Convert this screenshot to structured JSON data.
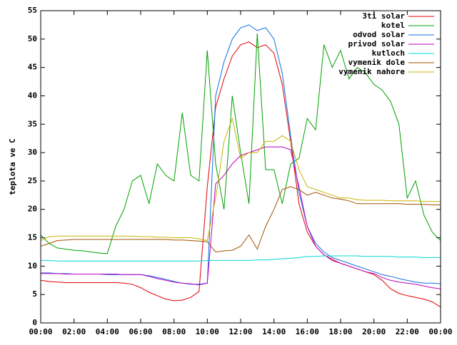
{
  "chart_data": {
    "type": "line",
    "y_label": "teplota ve C",
    "x": [
      0,
      0.5,
      1,
      1.5,
      2,
      2.5,
      3,
      3.5,
      4,
      4.5,
      5,
      5.5,
      6,
      6.5,
      7,
      7.5,
      8,
      8.5,
      9,
      9.5,
      10,
      10.5,
      11,
      11.5,
      12,
      12.5,
      13,
      13.5,
      14,
      14.5,
      15,
      15.5,
      16,
      16.5,
      17,
      17.5,
      18,
      18.5,
      19,
      19.5,
      20,
      20.5,
      21,
      21.5,
      22,
      22.5,
      23,
      23.5,
      24
    ],
    "series": [
      {
        "name": "3ti solar",
        "color": "#e00000",
        "values": [
          7.5,
          7.3,
          7.2,
          7.1,
          7.1,
          7.1,
          7.1,
          7.1,
          7.1,
          7.1,
          7.0,
          6.8,
          6.2,
          5.4,
          4.8,
          4.2,
          3.9,
          4.0,
          4.5,
          5.5,
          24,
          38,
          43,
          47,
          49,
          49.5,
          48.5,
          49,
          47.5,
          42,
          32,
          21,
          16,
          13.5,
          12,
          11.2,
          10.5,
          10,
          9.5,
          9,
          8.5,
          7.5,
          6,
          5.2,
          4.8,
          4.5,
          4.2,
          3.7,
          2.8
        ]
      },
      {
        "name": "kotel",
        "color": "#00a000",
        "values": [
          15.5,
          14,
          13.2,
          13,
          12.8,
          12.7,
          12.5,
          12.3,
          12.2,
          17,
          20,
          25,
          26,
          21,
          28,
          26,
          25,
          37,
          26,
          25,
          48,
          28,
          20,
          40,
          30,
          21,
          51,
          27,
          27,
          21,
          28,
          29,
          36,
          34,
          49,
          45,
          48,
          43,
          45,
          44,
          42,
          41,
          39,
          35,
          22,
          25,
          19,
          16,
          14.5
        ]
      },
      {
        "name": "odvod solar",
        "color": "#1070e0",
        "values": [
          8.8,
          8.8,
          8.7,
          8.7,
          8.6,
          8.6,
          8.6,
          8.6,
          8.5,
          8.5,
          8.5,
          8.5,
          8.5,
          8.3,
          8,
          7.7,
          7.3,
          7.0,
          6.8,
          6.8,
          7,
          40,
          46,
          50,
          52,
          52.5,
          51.5,
          52,
          50,
          44,
          33,
          23,
          17,
          14,
          12.5,
          11.5,
          11,
          10.5,
          10,
          9.5,
          9,
          8.5,
          8.2,
          7.8,
          7.5,
          7.2,
          7.0,
          7.0,
          6.9
        ]
      },
      {
        "name": "privod solar",
        "color": "#c000c0",
        "values": [
          8.7,
          8.7,
          8.7,
          8.6,
          8.6,
          8.6,
          8.6,
          8.6,
          8.6,
          8.6,
          8.5,
          8.5,
          8.5,
          8.2,
          7.8,
          7.5,
          7.2,
          7.0,
          6.9,
          6.7,
          7,
          24.5,
          26,
          28,
          29.5,
          30,
          30.5,
          31,
          31,
          31,
          30.5,
          24,
          17,
          13.5,
          12,
          11,
          10.5,
          10,
          9.5,
          9,
          8.7,
          8,
          7.5,
          7.2,
          7,
          6.8,
          6.5,
          6.2,
          6.0
        ]
      },
      {
        "name": "kutloch",
        "color": "#00d8d8",
        "values": [
          11,
          11,
          10.9,
          10.9,
          10.9,
          10.9,
          10.9,
          10.9,
          10.9,
          10.9,
          10.9,
          10.9,
          10.9,
          10.9,
          10.9,
          10.9,
          10.9,
          10.9,
          10.9,
          10.9,
          11,
          11,
          11,
          11,
          11,
          11,
          11.1,
          11.1,
          11.2,
          11.3,
          11.4,
          11.5,
          11.7,
          11.7,
          11.8,
          11.8,
          11.8,
          11.8,
          11.8,
          11.7,
          11.7,
          11.7,
          11.7,
          11.6,
          11.6,
          11.6,
          11.5,
          11.5,
          11.5
        ]
      },
      {
        "name": "vymenik dole",
        "color": "#a05000",
        "values": [
          13.5,
          14,
          14.5,
          14.6,
          14.7,
          14.7,
          14.7,
          14.7,
          14.7,
          14.7,
          14.7,
          14.7,
          14.7,
          14.7,
          14.7,
          14.7,
          14.6,
          14.6,
          14.5,
          14.4,
          14.3,
          12.5,
          12.7,
          12.8,
          13.5,
          15.5,
          13,
          17,
          20,
          23.5,
          24,
          23.5,
          22.5,
          23,
          22.5,
          22,
          21.8,
          21.5,
          21,
          21,
          21,
          21,
          21,
          21,
          20.9,
          20.9,
          20.9,
          20.8,
          20.8
        ]
      },
      {
        "name": "vymenik nahore",
        "color": "#c8b400",
        "values": [
          14.5,
          15.2,
          15.3,
          15.3,
          15.3,
          15.3,
          15.3,
          15.3,
          15.3,
          15.3,
          15.3,
          15.3,
          15.2,
          15.2,
          15.1,
          15.1,
          15,
          15,
          15,
          14.8,
          14.5,
          22,
          32,
          36,
          29,
          30,
          30,
          32,
          32,
          33,
          32,
          27,
          24,
          23.5,
          23,
          22.5,
          22,
          22,
          21.7,
          21.6,
          21.6,
          21.6,
          21.5,
          21.5,
          21.5,
          21.5,
          21.4,
          21.4,
          21.4
        ]
      }
    ],
    "xlim": [
      0,
      24
    ],
    "xticks": [
      {
        "value": 0,
        "label": "00:00"
      },
      {
        "value": 2,
        "label": "02:00"
      },
      {
        "value": 4,
        "label": "04:00"
      },
      {
        "value": 6,
        "label": "06:00"
      },
      {
        "value": 8,
        "label": "08:00"
      },
      {
        "value": 10,
        "label": "10:00"
      },
      {
        "value": 12,
        "label": "12:00"
      },
      {
        "value": 14,
        "label": "14:00"
      },
      {
        "value": 16,
        "label": "16:00"
      },
      {
        "value": 18,
        "label": "18:00"
      },
      {
        "value": 20,
        "label": "20:00"
      },
      {
        "value": 22,
        "label": "22:00"
      },
      {
        "value": 24,
        "label": "00:00"
      }
    ],
    "ylim": [
      0,
      55
    ],
    "yticks": [
      0,
      5,
      10,
      15,
      20,
      25,
      30,
      35,
      40,
      45,
      50,
      55
    ],
    "grid": false,
    "legend": "top-right"
  }
}
